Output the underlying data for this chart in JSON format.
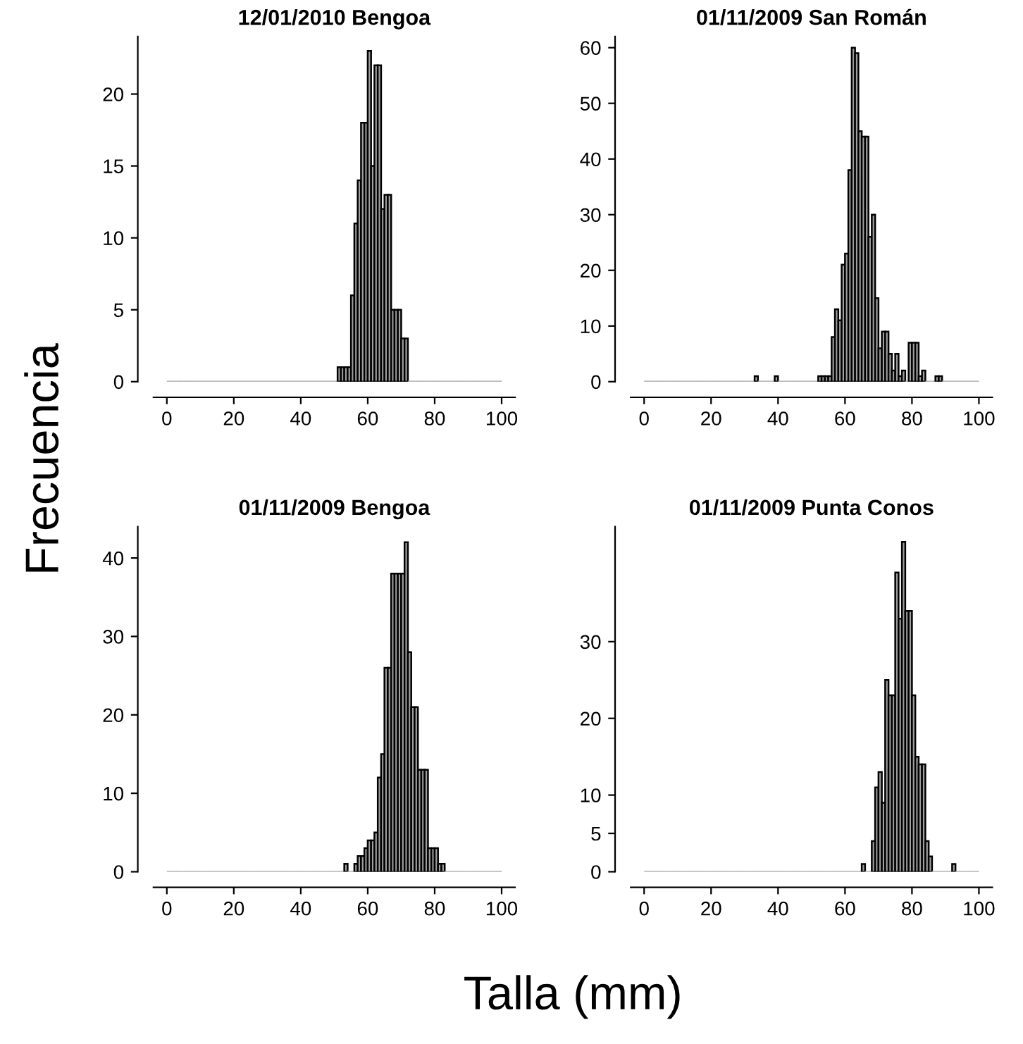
{
  "chart_data": [
    {
      "type": "histogram",
      "title": "12/01/2010 Bengoa",
      "ylabel": "Frecuencia",
      "color": "#a0a0a0",
      "bins": [
        0,
        1,
        2,
        3,
        4,
        5,
        6,
        7,
        8,
        9,
        10,
        11,
        12,
        13,
        14,
        15,
        16,
        17,
        18,
        19,
        20,
        21,
        22,
        23,
        24,
        25,
        26,
        27,
        28,
        29,
        30,
        31,
        32,
        33,
        34,
        35,
        36,
        37,
        38,
        39,
        40,
        41,
        42,
        43,
        44,
        45,
        46,
        47,
        48,
        49,
        50,
        51,
        52,
        53,
        54,
        55,
        56,
        57,
        58,
        59,
        60,
        61,
        62,
        63,
        64,
        65,
        66,
        67,
        68,
        69,
        70,
        71,
        72,
        73,
        74,
        75,
        76,
        77,
        78,
        79,
        80,
        81,
        82,
        83,
        84,
        85,
        86,
        87,
        88,
        89,
        90,
        91,
        92,
        93,
        94,
        95,
        96,
        97,
        98,
        99,
        100
      ],
      "values": [
        0,
        0,
        0,
        0,
        0,
        0,
        0,
        0,
        0,
        0,
        0,
        0,
        0,
        0,
        0,
        0,
        0,
        0,
        0,
        0,
        0,
        0,
        0,
        0,
        0,
        0,
        0,
        0,
        0,
        0,
        0,
        0,
        0,
        0,
        0,
        0,
        0,
        0,
        0,
        0,
        0,
        0,
        0,
        0,
        0,
        0,
        0,
        0,
        0,
        0,
        0,
        1,
        1,
        1,
        1,
        6,
        11,
        14,
        18,
        18,
        23,
        15,
        22,
        22,
        12,
        13,
        13,
        5,
        5,
        5,
        3,
        3,
        0,
        0,
        0,
        0,
        0,
        0,
        0,
        0,
        0,
        0,
        0,
        0,
        0,
        0,
        0,
        0,
        0,
        0,
        0,
        0,
        0,
        0,
        0,
        0,
        0,
        0,
        0,
        0
      ],
      "xlim": [
        -4,
        104
      ],
      "xticks": [
        0,
        20,
        40,
        60,
        80,
        100
      ],
      "ylim": [
        0,
        24
      ],
      "yticks": [
        0,
        5,
        10,
        15,
        20
      ]
    },
    {
      "type": "histogram",
      "title": "01/11/2009 San Román",
      "color": "#a0a0a0",
      "bins": [
        0,
        1,
        2,
        3,
        4,
        5,
        6,
        7,
        8,
        9,
        10,
        11,
        12,
        13,
        14,
        15,
        16,
        17,
        18,
        19,
        20,
        21,
        22,
        23,
        24,
        25,
        26,
        27,
        28,
        29,
        30,
        31,
        32,
        33,
        34,
        35,
        36,
        37,
        38,
        39,
        40,
        41,
        42,
        43,
        44,
        45,
        46,
        47,
        48,
        49,
        50,
        51,
        52,
        53,
        54,
        55,
        56,
        57,
        58,
        59,
        60,
        61,
        62,
        63,
        64,
        65,
        66,
        67,
        68,
        69,
        70,
        71,
        72,
        73,
        74,
        75,
        76,
        77,
        78,
        79,
        80,
        81,
        82,
        83,
        84,
        85,
        86,
        87,
        88,
        89,
        90,
        91,
        92,
        93,
        94,
        95,
        96,
        97,
        98,
        99,
        100
      ],
      "values": [
        0,
        0,
        0,
        0,
        0,
        0,
        0,
        0,
        0,
        0,
        0,
        0,
        0,
        0,
        0,
        0,
        0,
        0,
        0,
        0,
        0,
        0,
        0,
        0,
        0,
        0,
        0,
        0,
        0,
        0,
        0,
        0,
        0,
        1,
        0,
        0,
        0,
        0,
        0,
        1,
        0,
        0,
        0,
        0,
        0,
        0,
        0,
        0,
        0,
        0,
        0,
        0,
        1,
        1,
        1,
        1,
        8,
        13,
        11,
        21,
        23,
        38,
        60,
        59,
        45,
        44,
        44,
        26,
        30,
        15,
        6,
        9,
        9,
        5,
        2,
        5,
        1,
        2,
        0,
        7,
        7,
        7,
        1,
        2,
        0,
        0,
        0,
        1,
        1,
        0,
        0,
        0,
        0,
        0,
        0,
        0,
        0,
        0,
        0,
        0
      ],
      "xlim": [
        -4,
        104
      ],
      "xticks": [
        0,
        20,
        40,
        60,
        80,
        100
      ],
      "ylim": [
        0,
        62
      ],
      "yticks": [
        0,
        10,
        20,
        30,
        40,
        50,
        60
      ]
    },
    {
      "type": "histogram",
      "title": "01/11/2009 Bengoa",
      "color": "#a0a0a0",
      "bins": [
        0,
        1,
        2,
        3,
        4,
        5,
        6,
        7,
        8,
        9,
        10,
        11,
        12,
        13,
        14,
        15,
        16,
        17,
        18,
        19,
        20,
        21,
        22,
        23,
        24,
        25,
        26,
        27,
        28,
        29,
        30,
        31,
        32,
        33,
        34,
        35,
        36,
        37,
        38,
        39,
        40,
        41,
        42,
        43,
        44,
        45,
        46,
        47,
        48,
        49,
        50,
        51,
        52,
        53,
        54,
        55,
        56,
        57,
        58,
        59,
        60,
        61,
        62,
        63,
        64,
        65,
        66,
        67,
        68,
        69,
        70,
        71,
        72,
        73,
        74,
        75,
        76,
        77,
        78,
        79,
        80,
        81,
        82,
        83,
        84,
        85,
        86,
        87,
        88,
        89,
        90,
        91,
        92,
        93,
        94,
        95,
        96,
        97,
        98,
        99,
        100
      ],
      "values": [
        0,
        0,
        0,
        0,
        0,
        0,
        0,
        0,
        0,
        0,
        0,
        0,
        0,
        0,
        0,
        0,
        0,
        0,
        0,
        0,
        0,
        0,
        0,
        0,
        0,
        0,
        0,
        0,
        0,
        0,
        0,
        0,
        0,
        0,
        0,
        0,
        0,
        0,
        0,
        0,
        0,
        0,
        0,
        0,
        0,
        0,
        0,
        0,
        0,
        0,
        0,
        0,
        0,
        1,
        0,
        0,
        1,
        2,
        2,
        3,
        4,
        4,
        5,
        12,
        15,
        26,
        26,
        38,
        38,
        38,
        38,
        42,
        28,
        21,
        21,
        13,
        13,
        13,
        3,
        3,
        3,
        1,
        1,
        0,
        0,
        0,
        0,
        0,
        0,
        0,
        0,
        0,
        0,
        0,
        0,
        0,
        0,
        0,
        0,
        0
      ],
      "xlim": [
        -4,
        104
      ],
      "xticks": [
        0,
        20,
        40,
        60,
        80,
        100
      ],
      "ylim": [
        0,
        44
      ],
      "yticks": [
        0,
        10,
        20,
        30,
        40
      ]
    },
    {
      "type": "histogram",
      "title": "01/11/2009 Punta Conos",
      "xlabel": "Talla (mm)",
      "color": "#a0a0a0",
      "bins": [
        0,
        1,
        2,
        3,
        4,
        5,
        6,
        7,
        8,
        9,
        10,
        11,
        12,
        13,
        14,
        15,
        16,
        17,
        18,
        19,
        20,
        21,
        22,
        23,
        24,
        25,
        26,
        27,
        28,
        29,
        30,
        31,
        32,
        33,
        34,
        35,
        36,
        37,
        38,
        39,
        40,
        41,
        42,
        43,
        44,
        45,
        46,
        47,
        48,
        49,
        50,
        51,
        52,
        53,
        54,
        55,
        56,
        57,
        58,
        59,
        60,
        61,
        62,
        63,
        64,
        65,
        66,
        67,
        68,
        69,
        70,
        71,
        72,
        73,
        74,
        75,
        76,
        77,
        78,
        79,
        80,
        81,
        82,
        83,
        84,
        85,
        86,
        87,
        88,
        89,
        90,
        91,
        92,
        93,
        94,
        95,
        96,
        97,
        98,
        99,
        100
      ],
      "values": [
        0,
        0,
        0,
        0,
        0,
        0,
        0,
        0,
        0,
        0,
        0,
        0,
        0,
        0,
        0,
        0,
        0,
        0,
        0,
        0,
        0,
        0,
        0,
        0,
        0,
        0,
        0,
        0,
        0,
        0,
        0,
        0,
        0,
        0,
        0,
        0,
        0,
        0,
        0,
        0,
        0,
        0,
        0,
        0,
        0,
        0,
        0,
        0,
        0,
        0,
        0,
        0,
        0,
        0,
        0,
        0,
        0,
        0,
        0,
        0,
        0,
        0,
        0,
        0,
        0,
        1,
        0,
        0,
        4,
        11,
        13,
        9,
        25,
        23,
        23,
        39,
        33,
        43,
        34,
        34,
        23,
        15,
        14,
        14,
        4,
        2,
        0,
        0,
        0,
        0,
        0,
        0,
        1,
        0,
        0,
        0,
        0,
        0,
        0,
        0
      ],
      "xlim": [
        -4,
        104
      ],
      "xticks": [
        0,
        20,
        40,
        60,
        80,
        100
      ],
      "ylim": [
        0,
        45
      ],
      "yticks": [
        0,
        5,
        10,
        20,
        30
      ]
    }
  ]
}
